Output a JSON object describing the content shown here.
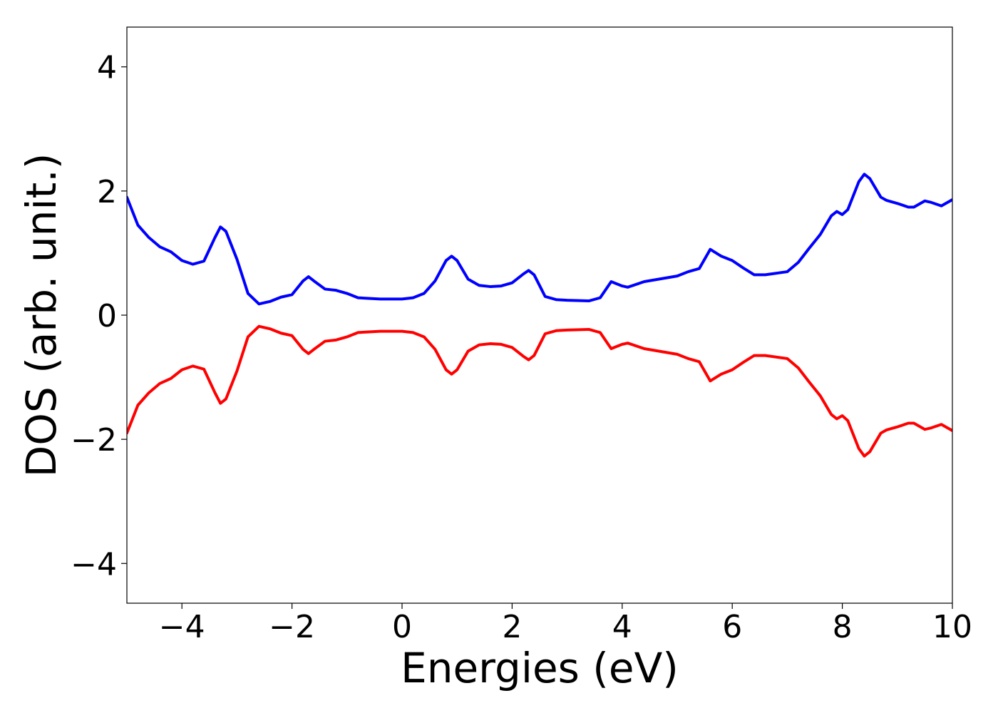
{
  "chart_data": {
    "type": "line",
    "xlabel": "Energies (eV)",
    "ylabel": "DOS (arb. unit.)",
    "x": [
      -5,
      -4.8,
      -4.6,
      -4.4,
      -4.2,
      -4.0,
      -3.8,
      -3.6,
      -3.4,
      -3.3,
      -3.2,
      -3.0,
      -2.8,
      -2.6,
      -2.4,
      -2.2,
      -2.0,
      -1.8,
      -1.7,
      -1.6,
      -1.4,
      -1.2,
      -1.0,
      -0.8,
      -0.4,
      0,
      0.2,
      0.4,
      0.6,
      0.8,
      0.9,
      1.0,
      1.2,
      1.4,
      1.6,
      1.8,
      2.0,
      2.2,
      2.3,
      2.4,
      2.6,
      2.8,
      3.0,
      3.4,
      3.6,
      3.8,
      4.0,
      4.1,
      4.2,
      4.4,
      4.8,
      5.0,
      5.2,
      5.4,
      5.6,
      5.8,
      6.0,
      6.2,
      6.4,
      6.6,
      7.0,
      7.2,
      7.4,
      7.6,
      7.8,
      7.9,
      8.0,
      8.1,
      8.3,
      8.4,
      8.5,
      8.7,
      8.8,
      9.0,
      9.2,
      9.3,
      9.5,
      9.6,
      9.8,
      10
    ],
    "series": [
      {
        "color": "#0000ff",
        "values": [
          1.9,
          1.45,
          1.25,
          1.1,
          1.02,
          0.88,
          0.82,
          0.87,
          1.25,
          1.42,
          1.35,
          0.9,
          0.35,
          0.18,
          0.22,
          0.29,
          0.33,
          0.55,
          0.62,
          0.55,
          0.42,
          0.4,
          0.35,
          0.28,
          0.26,
          0.26,
          0.28,
          0.35,
          0.55,
          0.88,
          0.95,
          0.88,
          0.58,
          0.48,
          0.46,
          0.47,
          0.52,
          0.66,
          0.72,
          0.65,
          0.3,
          0.25,
          0.24,
          0.23,
          0.28,
          0.54,
          0.47,
          0.45,
          0.48,
          0.54,
          0.6,
          0.63,
          0.7,
          0.75,
          1.06,
          0.95,
          0.88,
          0.76,
          0.65,
          0.65,
          0.7,
          0.85,
          1.08,
          1.3,
          1.6,
          1.67,
          1.62,
          1.7,
          2.15,
          2.27,
          2.2,
          1.9,
          1.85,
          1.8,
          1.74,
          1.74,
          1.84,
          1.82,
          1.76,
          1.86
        ]
      },
      {
        "color": "#ff0000",
        "values": [
          -1.9,
          -1.45,
          -1.25,
          -1.1,
          -1.02,
          -0.88,
          -0.82,
          -0.87,
          -1.25,
          -1.42,
          -1.35,
          -0.9,
          -0.35,
          -0.18,
          -0.22,
          -0.29,
          -0.33,
          -0.55,
          -0.62,
          -0.55,
          -0.42,
          -0.4,
          -0.35,
          -0.28,
          -0.26,
          -0.26,
          -0.28,
          -0.35,
          -0.55,
          -0.88,
          -0.95,
          -0.88,
          -0.58,
          -0.48,
          -0.46,
          -0.47,
          -0.52,
          -0.66,
          -0.72,
          -0.65,
          -0.3,
          -0.25,
          -0.24,
          -0.23,
          -0.28,
          -0.54,
          -0.47,
          -0.45,
          -0.48,
          -0.54,
          -0.6,
          -0.63,
          -0.7,
          -0.75,
          -1.06,
          -0.95,
          -0.88,
          -0.76,
          -0.65,
          -0.65,
          -0.7,
          -0.85,
          -1.08,
          -1.3,
          -1.6,
          -1.67,
          -1.62,
          -1.7,
          -2.15,
          -2.27,
          -2.2,
          -1.9,
          -1.85,
          -1.8,
          -1.74,
          -1.74,
          -1.84,
          -1.82,
          -1.76,
          -1.86
        ]
      }
    ],
    "xlim": [
      -5,
      10
    ],
    "xticks": [
      {
        "value": -4,
        "label": "−4"
      },
      {
        "value": -2,
        "label": "−2"
      },
      0,
      2,
      4,
      6,
      8,
      10
    ],
    "ylim": [
      -4.64,
      4.64
    ],
    "yticks": [
      {
        "value": -4,
        "label": "−4"
      },
      {
        "value": -2,
        "label": "−2"
      },
      0,
      2,
      4
    ],
    "grid": false
  }
}
